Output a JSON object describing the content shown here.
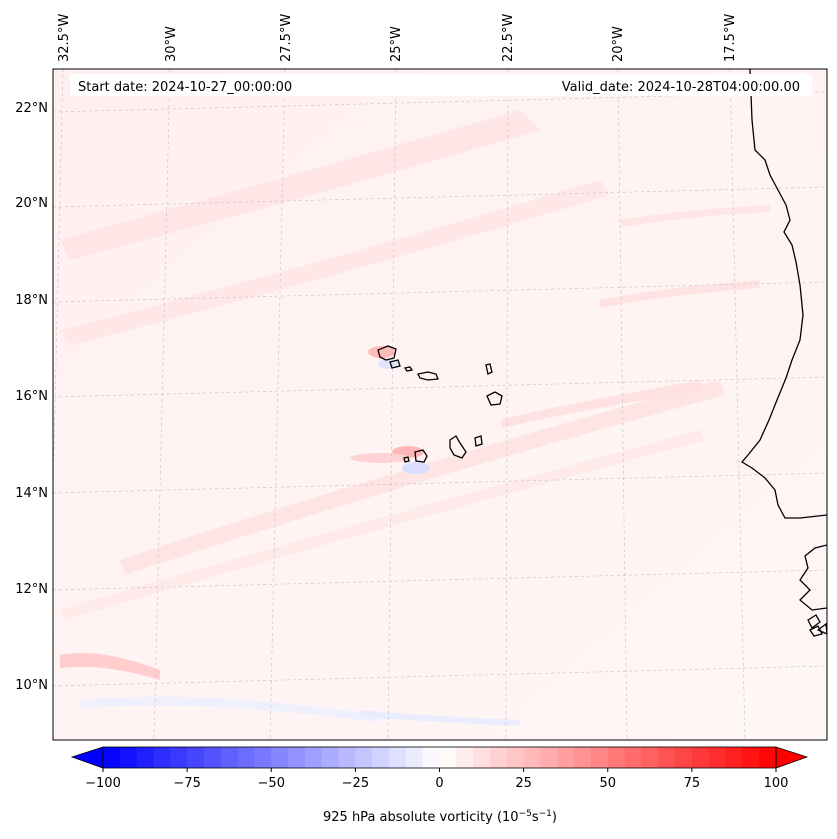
{
  "header": {
    "start_date": "Start date: 2024-10-27_00:00:00",
    "valid_date": "Valid_date: 2024-10-28T04:00:00.00"
  },
  "map": {
    "lon_labels": [
      "32.5°W",
      "30°W",
      "27.5°W",
      "25°W",
      "22.5°W",
      "20°W",
      "17.5°W"
    ],
    "lat_labels": [
      "22°N",
      "20°N",
      "18°N",
      "16°N",
      "14°N",
      "12°N",
      "10°N"
    ],
    "gridlines": "dashed light gray",
    "coastline_color": "#000000"
  },
  "colorbar": {
    "ticks": [
      "−100",
      "−75",
      "−50",
      "−25",
      "0",
      "25",
      "50",
      "75",
      "100"
    ],
    "label": "925 hPa absolute vorticity (10",
    "label_exp1": "−5",
    "label_mid": "s",
    "label_exp2": "−1",
    "label_end": ")",
    "colormap": "bwr",
    "min": -100,
    "max": 100,
    "extend": "both",
    "low_color": "#0000ff",
    "mid_color": "#ffffff",
    "high_color": "#ff0000"
  }
}
